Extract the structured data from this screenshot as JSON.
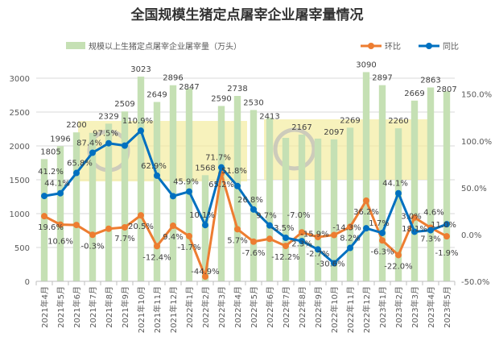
{
  "chart_data": {
    "type": "bar+line",
    "title": "全国规模生猪定点屠宰企业屠宰量情况",
    "categories": [
      "2021年4月",
      "2021年5月",
      "2021年6月",
      "2021年7月",
      "2021年8月",
      "2021年9月",
      "2021年10月",
      "2021年11月",
      "2021年12月",
      "2022年1月",
      "2022年2月",
      "2022年3月",
      "2022年4月",
      "2022年5月",
      "2022年6月",
      "2022年7月",
      "2022年8月",
      "2022年9月",
      "2022年10月",
      "2022年11月",
      "2022年12月",
      "2023年1月",
      "2023年2月",
      "2023年3月",
      "2023年4月",
      "2023年5月"
    ],
    "series": [
      {
        "name": "规模以上生猪定点屠宰企业屠宰量（万头）",
        "kind": "bar",
        "axis": "left",
        "color": "#C5E0B4",
        "values": [
          1805,
          1996,
          2200,
          2193,
          2329,
          2509,
          3023,
          2649,
          2896,
          2847,
          1568,
          2590,
          2738,
          2530,
          2413,
          2119,
          2167,
          2108,
          2097,
          2269,
          3090,
          2897,
          2260,
          2669,
          2863,
          2807
        ],
        "labels": [
          "1805",
          "1996",
          "2200",
          null,
          "2329",
          "2509",
          "3023",
          "2649",
          "2896",
          "2847",
          "1568",
          "2590",
          "2738",
          "2530",
          "2413",
          null,
          "2167",
          null,
          "2097",
          "2269",
          "3090",
          "2897",
          "2260",
          "2669",
          "2863",
          "2807"
        ]
      },
      {
        "name": "环比",
        "kind": "line",
        "axis": "right",
        "color": "#ED7D31",
        "values": [
          19.6,
          10.6,
          10.2,
          -0.3,
          6.2,
          7.7,
          20.5,
          -12.4,
          9.4,
          -1.7,
          -44.9,
          65.2,
          5.7,
          -7.6,
          -4.6,
          -12.2,
          2.3,
          -2.7,
          -0.5,
          8.2,
          36.2,
          -6.3,
          -22.0,
          18.1,
          7.3,
          -1.9
        ],
        "labels": [
          "19.6%",
          "10.6%",
          null,
          "-0.3%",
          null,
          "7.7%",
          "20.5%",
          "-12.4%",
          "9.4%",
          "-1.7%",
          "-44.9%",
          "65.2%",
          "5.7%",
          "-7.6%",
          null,
          "-12.2%",
          "2.3%",
          "-2.7%",
          null,
          "8.2%",
          "36.2%",
          "-6.3%",
          "-22.0%",
          "18.1%",
          "7.3%",
          "-1.9%"
        ]
      },
      {
        "name": "同比",
        "kind": "line",
        "axis": "right",
        "color": "#0070C0",
        "values": [
          41.2,
          44.1,
          65.8,
          87.4,
          97.5,
          95.0,
          110.9,
          62.9,
          41.0,
          45.9,
          10.1,
          71.7,
          51.8,
          26.8,
          9.7,
          -3.5,
          -7.0,
          -15.9,
          -30.6,
          -14.3,
          6.7,
          1.7,
          44.1,
          3.0,
          4.6,
          11.0
        ],
        "labels": [
          "41.2%",
          "44.1%",
          "65.8%",
          "87.4%",
          "97.5%",
          null,
          "110.9%",
          "62.9%",
          null,
          "45.9%",
          "10.1%",
          "71.7%",
          "51.8%",
          "26.8%",
          "9.7%",
          "-3.5%",
          "-7.0%",
          "-15.9%",
          "-30.6%",
          "-14.3%",
          null,
          "1.7%",
          "44.1%",
          "3.0%",
          "4.6%",
          "11.0%"
        ]
      }
    ],
    "y_left": {
      "min": 0,
      "max": 3000,
      "ticks": [
        "0",
        "500",
        "1000",
        "1500",
        "2000",
        "2500",
        "3000"
      ]
    },
    "y_right": {
      "min": -50,
      "max": 167,
      "ticks": [
        "-50.0%",
        "0.0%",
        "50.0%",
        "100.0%",
        "150.0%"
      ]
    },
    "grid": true,
    "legend": "top"
  },
  "watermark": {
    "text": "大畜牧",
    "url": "www.dxumu.com"
  }
}
